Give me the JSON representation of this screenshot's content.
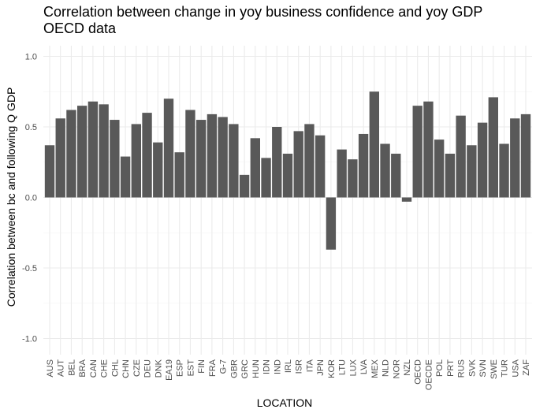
{
  "chart_data": {
    "type": "bar",
    "title": "Correlation between change in yoy business confidence and yoy GDP\nOECD data",
    "xlabel": "LOCATION",
    "ylabel": "Correlation between bc and following Q GDP",
    "ylim": [
      -1,
      1
    ],
    "yticks": [
      "-1.0",
      "-0.5",
      "0.0",
      "0.5",
      "1.0"
    ],
    "grid": true,
    "bar_color": "#595959",
    "categories": [
      "AUS",
      "AUT",
      "BEL",
      "BRA",
      "CAN",
      "CHE",
      "CHL",
      "CHN",
      "CZE",
      "DEU",
      "DNK",
      "EA19",
      "ESP",
      "EST",
      "FIN",
      "FRA",
      "G-7",
      "GBR",
      "GRC",
      "HUN",
      "IDN",
      "IND",
      "IRL",
      "ISR",
      "ITA",
      "JPN",
      "KOR",
      "LTU",
      "LUX",
      "LVA",
      "MEX",
      "NLD",
      "NOR",
      "NZL",
      "OECD",
      "OECDE",
      "POL",
      "PRT",
      "RUS",
      "SVK",
      "SVN",
      "SWE",
      "TUR",
      "USA",
      "ZAF"
    ],
    "values": [
      0.37,
      0.56,
      0.62,
      0.65,
      0.68,
      0.66,
      0.55,
      0.29,
      0.52,
      0.6,
      0.39,
      0.7,
      0.32,
      0.62,
      0.55,
      0.59,
      0.57,
      0.52,
      0.16,
      0.42,
      0.28,
      0.5,
      0.31,
      0.47,
      0.52,
      0.44,
      -0.37,
      0.34,
      0.27,
      0.45,
      0.75,
      0.38,
      0.31,
      -0.03,
      0.65,
      0.68,
      0.41,
      0.31,
      0.58,
      0.37,
      0.53,
      0.71,
      0.38,
      0.56,
      0.59
    ]
  }
}
